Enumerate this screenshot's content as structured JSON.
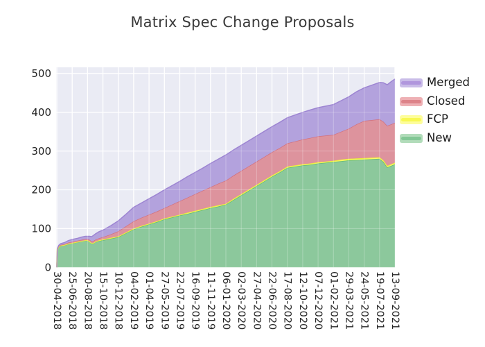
{
  "figure": {
    "title": "Matrix Spec Change Proposals"
  },
  "colors": {
    "figure_bg": "#ffffff",
    "plot_bg": "#eaebf4",
    "gridline": "#ffffff",
    "tick_label": "#262626",
    "title_text": "#3a3a3a",
    "legend_text": "#1a1a1a"
  },
  "chart_data": {
    "type": "area",
    "stacked": true,
    "title": "Matrix Spec Change Proposals",
    "xlabel": "",
    "ylabel": "",
    "grid": true,
    "legend_position": "outside-top-right",
    "legend_order_top_to_bottom": [
      "Merged",
      "Closed",
      "FCP",
      "New"
    ],
    "y_ticks": [
      0,
      100,
      200,
      300,
      400,
      500
    ],
    "ylim": [
      0,
      516
    ],
    "tick_interval_days": 56,
    "x_tick_labels": [
      "30-04-2018",
      "25-06-2018",
      "20-08-2018",
      "15-10-2018",
      "10-12-2018",
      "04-02-2019",
      "01-04-2019",
      "27-05-2019",
      "22-07-2019",
      "16-09-2019",
      "11-11-2019",
      "06-01-2020",
      "02-03-2020",
      "27-04-2020",
      "22-06-2020",
      "17-08-2020",
      "12-10-2020",
      "07-12-2020",
      "01-02-2021",
      "29-03-2021",
      "24-05-2021",
      "19-07-2021",
      "13-09-2021"
    ],
    "x_days": [
      0,
      2,
      7,
      14,
      28,
      42,
      56,
      76,
      90,
      104,
      112,
      120,
      126,
      133,
      140,
      154,
      168,
      196,
      224,
      252,
      280,
      308,
      336,
      364,
      392,
      420,
      448,
      476,
      504,
      532,
      560,
      588,
      616,
      644,
      672,
      700,
      728,
      756,
      784,
      812,
      840,
      868,
      896,
      924,
      952,
      980,
      1008,
      1036,
      1064,
      1092,
      1120,
      1148,
      1176,
      1190,
      1204,
      1218,
      1232
    ],
    "series": [
      {
        "name": "New",
        "fill": "#8cc89c",
        "line": "#5fb974",
        "legend_fill": "#b2dcba",
        "legend_line": "#82c795",
        "values": [
          0,
          46,
          53,
          55,
          57,
          60,
          62,
          65,
          67,
          69,
          69,
          66,
          62,
          62,
          65,
          68,
          70,
          74,
          78,
          88,
          98,
          105,
          111,
          117,
          124,
          129,
          134,
          138,
          143,
          148,
          153,
          157,
          162,
          174,
          186,
          198,
          210,
          222,
          234,
          245,
          257,
          260,
          263,
          265,
          268,
          270,
          272,
          274,
          276,
          277,
          278,
          279,
          280,
          272,
          258,
          262,
          266
        ]
      },
      {
        "name": "FCP",
        "fill": "#f9fa6a",
        "line": "#eeee3e",
        "legend_fill": "#fdfd9c",
        "legend_line": "#f8f852",
        "values": [
          0,
          1,
          1,
          1,
          1,
          1,
          1,
          1,
          1,
          1,
          1,
          1,
          1,
          1,
          1,
          2,
          2,
          2,
          2,
          2,
          2,
          2,
          2,
          2,
          2,
          2,
          2,
          3,
          3,
          3,
          3,
          3,
          2,
          3,
          3,
          3,
          3,
          3,
          3,
          3,
          3,
          3,
          3,
          3,
          3,
          3,
          3,
          4,
          4,
          4,
          4,
          4,
          4,
          4,
          4,
          4,
          4
        ]
      },
      {
        "name": "Closed",
        "fill": "#dd939d",
        "line": "#d2707d",
        "legend_fill": "#eeb0b4",
        "legend_line": "#dd8389",
        "values": [
          0,
          1,
          1,
          2,
          2,
          3,
          3,
          3,
          3,
          3,
          3,
          4,
          4,
          5,
          5,
          5,
          6,
          9,
          13,
          16,
          19,
          21,
          23,
          25,
          27,
          31,
          35,
          39,
          43,
          47,
          51,
          56,
          60,
          60,
          60,
          60,
          60,
          60,
          60,
          60,
          60,
          62,
          64,
          66,
          67,
          67,
          67,
          72,
          78,
          88,
          96,
          97,
          98,
          100,
          103,
          103,
          103
        ]
      },
      {
        "name": "Merged",
        "fill": "#b3a2dd",
        "line": "#9d85d2",
        "legend_fill": "#c9bce8",
        "legend_line": "#b096dd",
        "values": [
          0,
          1,
          2,
          3,
          4,
          5,
          6,
          6,
          7,
          7,
          7,
          9,
          12,
          14,
          15,
          17,
          18,
          22,
          27,
          31,
          36,
          38,
          41,
          44,
          47,
          49,
          51,
          54,
          56,
          58,
          61,
          63,
          66,
          66,
          66,
          66,
          66,
          66,
          66,
          66,
          66,
          68,
          70,
          72,
          74,
          76,
          78,
          80,
          82,
          84,
          85,
          90,
          95,
          100,
          106,
          110,
          113
        ]
      }
    ]
  }
}
